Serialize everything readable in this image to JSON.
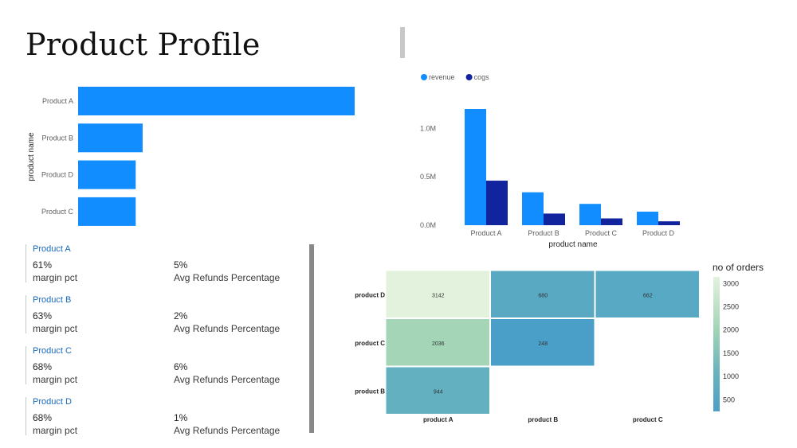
{
  "title": "Product Profile",
  "cards": [
    {
      "name": "Product A",
      "value1": "61%",
      "label1": "margin pct",
      "value2": "5%",
      "label2": "Avg Refunds Percentage"
    },
    {
      "name": "Product B",
      "value1": "63%",
      "label1": "margin pct",
      "value2": "2%",
      "label2": "Avg Refunds Percentage"
    },
    {
      "name": "Product C",
      "value1": "68%",
      "label1": "margin pct",
      "value2": "6%",
      "label2": "Avg Refunds Percentage"
    },
    {
      "name": "Product D",
      "value1": "68%",
      "label1": "margin pct",
      "value2": "1%",
      "label2": "Avg Refunds Percentage"
    }
  ],
  "colors": {
    "revenue": "#118dff",
    "cogs": "#12239e",
    "card_name": "#1769bf"
  },
  "chart_data": [
    {
      "type": "bar",
      "orientation": "horizontal",
      "ylabel": "product name",
      "categories": [
        "Product A",
        "Product B",
        "Product D",
        "Product C"
      ],
      "values": [
        1.2,
        0.28,
        0.25,
        0.25
      ]
    },
    {
      "type": "bar",
      "xlabel": "product name",
      "categories": [
        "Product A",
        "Product B",
        "Product C",
        "Product D"
      ],
      "series": [
        {
          "name": "revenue",
          "values": [
            1.2,
            0.34,
            0.22,
            0.14
          ]
        },
        {
          "name": "cogs",
          "values": [
            0.46,
            0.12,
            0.07,
            0.04
          ]
        }
      ],
      "yticks": [
        "0.0M",
        "0.5M",
        "1.0M"
      ],
      "ylim": [
        0,
        1.2
      ],
      "legend": "top-left"
    },
    {
      "type": "heatmap",
      "rows": [
        "product D",
        "product C",
        "product B"
      ],
      "cols": [
        "product A",
        "product B",
        "product C"
      ],
      "values": [
        [
          3142,
          680,
          662
        ],
        [
          2036,
          248,
          null
        ],
        [
          944,
          null,
          null
        ]
      ],
      "colorbar_title": "no of orders",
      "colorbar_ticks": [
        3000,
        2500,
        2000,
        1500,
        1000,
        500
      ],
      "vmin": 248,
      "vmax": 3142
    }
  ]
}
